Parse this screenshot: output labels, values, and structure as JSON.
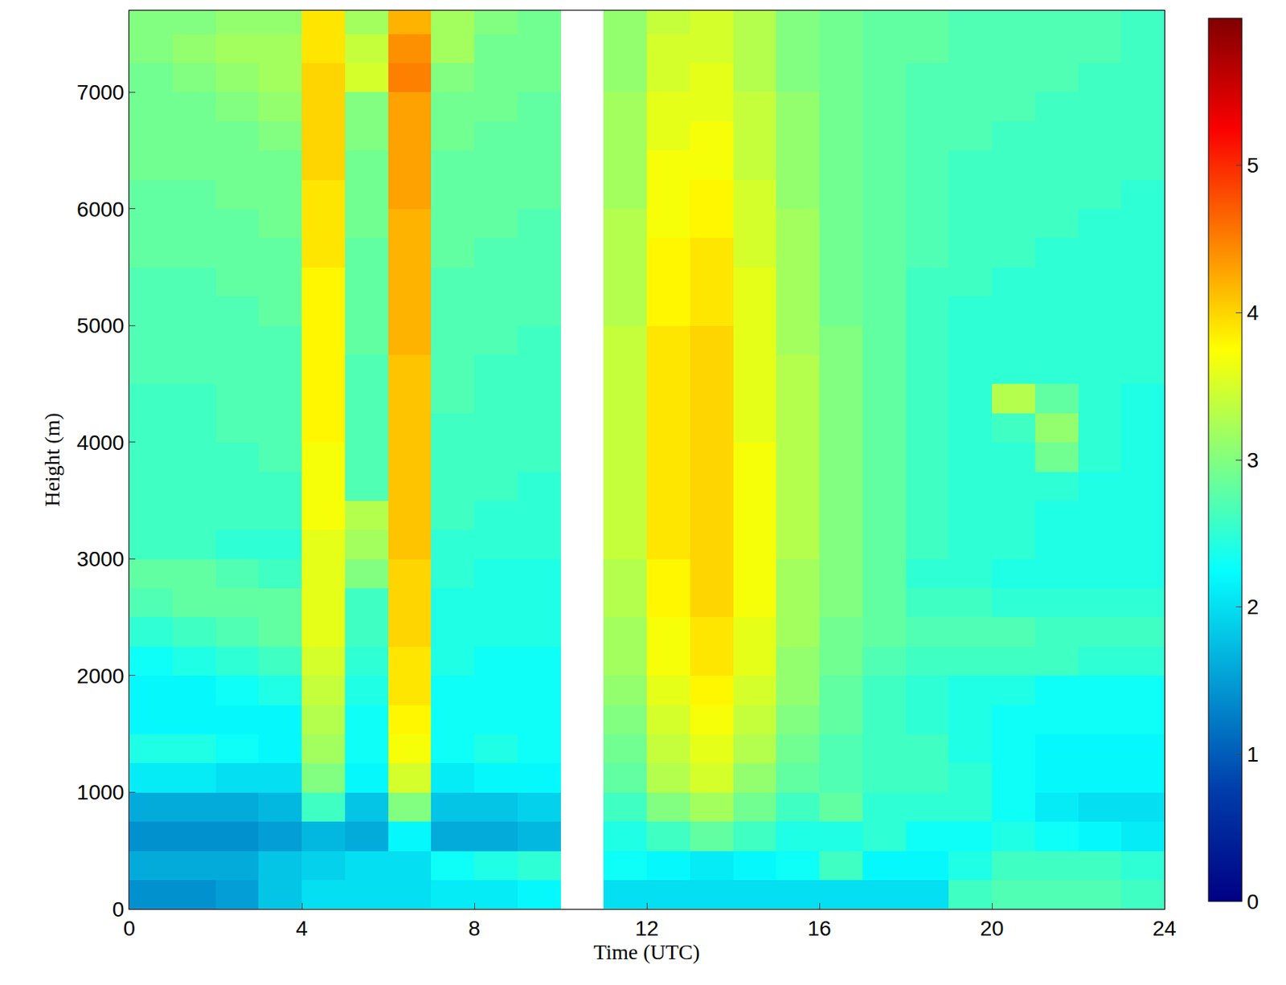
{
  "chart_data": {
    "type": "heatmap",
    "x_label": "Time (UTC)",
    "y_label": "Height (m)",
    "color": "Jet",
    "x": [
      0.5,
      1.5,
      2.5,
      3.5,
      4.5,
      5.5,
      6.5,
      7.5,
      8.5,
      9.5,
      10.5,
      11.5,
      12.5,
      13.5,
      14.5,
      15.5,
      16.5,
      17.5,
      18.5,
      19.5,
      20.5,
      21.5,
      22.5,
      23.5
    ],
    "y": [
      125,
      375,
      625,
      875,
      1125,
      1375,
      1625,
      1875,
      2125,
      2375,
      2625,
      2875,
      3125,
      3375,
      3625,
      3875,
      4125,
      4375,
      4625,
      4875,
      5125,
      5375,
      5625,
      5875,
      6125,
      6375,
      6625,
      6875,
      7125,
      7375,
      7625
    ],
    "z": [
      [
        1.4,
        1.4,
        1.5,
        1.8,
        2.0,
        2.0,
        2.0,
        2.1,
        2.1,
        2.2,
        null,
        2.0,
        2.0,
        2.0,
        2.0,
        2.0,
        2.0,
        2.0,
        2.0,
        2.6,
        2.7,
        2.7,
        2.7,
        2.6
      ],
      [
        1.6,
        1.6,
        1.6,
        1.8,
        1.9,
        2.0,
        2.0,
        2.3,
        2.4,
        2.5,
        null,
        2.3,
        2.2,
        2.1,
        2.2,
        2.3,
        2.6,
        2.2,
        2.2,
        2.4,
        2.6,
        2.6,
        2.6,
        2.5
      ],
      [
        1.4,
        1.4,
        1.4,
        1.5,
        1.7,
        1.6,
        2.2,
        1.6,
        1.6,
        1.7,
        null,
        2.4,
        2.6,
        2.8,
        2.6,
        2.4,
        2.4,
        2.5,
        2.3,
        2.3,
        2.4,
        2.3,
        2.2,
        2.1
      ],
      [
        1.6,
        1.6,
        1.6,
        1.7,
        2.6,
        1.8,
        3.0,
        1.8,
        1.8,
        1.9,
        null,
        2.6,
        3.0,
        3.2,
        2.9,
        2.6,
        2.8,
        2.5,
        2.5,
        2.5,
        2.3,
        2.1,
        2.0,
        2.0
      ],
      [
        2.1,
        2.1,
        2.0,
        2.0,
        3.0,
        2.2,
        3.5,
        2.1,
        2.2,
        2.2,
        null,
        2.8,
        3.3,
        3.5,
        3.1,
        2.8,
        2.7,
        2.6,
        2.6,
        2.5,
        2.3,
        2.2,
        2.2,
        2.2
      ],
      [
        2.4,
        2.4,
        2.3,
        2.2,
        3.2,
        2.3,
        3.7,
        2.3,
        2.4,
        2.3,
        null,
        2.9,
        3.4,
        3.6,
        3.3,
        2.9,
        2.7,
        2.6,
        2.6,
        2.4,
        2.3,
        2.2,
        2.2,
        2.2
      ],
      [
        2.2,
        2.2,
        2.2,
        2.2,
        3.3,
        2.3,
        3.8,
        2.3,
        2.3,
        2.3,
        null,
        3.0,
        3.5,
        3.7,
        3.4,
        3.0,
        2.8,
        2.6,
        2.5,
        2.4,
        2.3,
        2.3,
        2.3,
        2.3
      ],
      [
        2.2,
        2.2,
        2.3,
        2.4,
        3.4,
        2.4,
        3.9,
        2.3,
        2.3,
        2.3,
        null,
        3.1,
        3.6,
        3.8,
        3.5,
        3.1,
        2.8,
        2.6,
        2.5,
        2.4,
        2.4,
        2.3,
        2.3,
        2.3
      ],
      [
        2.3,
        2.4,
        2.5,
        2.6,
        3.5,
        2.5,
        3.9,
        2.4,
        2.3,
        2.3,
        null,
        3.2,
        3.7,
        3.9,
        3.6,
        3.1,
        2.9,
        2.7,
        2.6,
        2.6,
        2.6,
        2.6,
        2.5,
        2.5
      ],
      [
        2.5,
        2.6,
        2.7,
        2.8,
        3.6,
        2.6,
        4.0,
        2.4,
        2.4,
        2.4,
        null,
        3.2,
        3.7,
        3.9,
        3.6,
        3.2,
        2.9,
        2.8,
        2.7,
        2.7,
        2.7,
        2.6,
        2.6,
        2.6
      ],
      [
        2.7,
        2.8,
        2.8,
        2.8,
        3.6,
        2.6,
        4.0,
        2.4,
        2.4,
        2.4,
        null,
        3.3,
        3.8,
        4.0,
        3.7,
        3.2,
        3.0,
        2.8,
        2.6,
        2.6,
        2.5,
        2.5,
        2.5,
        2.5
      ],
      [
        2.8,
        2.8,
        2.7,
        2.6,
        3.6,
        3.0,
        4.0,
        2.5,
        2.4,
        2.4,
        null,
        3.3,
        3.8,
        4.0,
        3.7,
        3.2,
        3.0,
        2.8,
        2.5,
        2.5,
        2.4,
        2.4,
        2.4,
        2.4
      ],
      [
        2.6,
        2.6,
        2.5,
        2.5,
        3.6,
        3.2,
        4.1,
        2.5,
        2.5,
        2.5,
        null,
        3.4,
        3.9,
        4.0,
        3.7,
        3.3,
        3.0,
        2.8,
        2.6,
        2.5,
        2.5,
        2.4,
        2.4,
        2.4
      ],
      [
        2.6,
        2.6,
        2.6,
        2.6,
        3.7,
        3.3,
        4.1,
        2.6,
        2.5,
        2.5,
        null,
        3.4,
        3.9,
        4.0,
        3.7,
        3.3,
        3.0,
        2.8,
        2.6,
        2.5,
        2.5,
        2.4,
        2.4,
        2.4
      ],
      [
        2.6,
        2.6,
        2.6,
        2.6,
        3.7,
        2.7,
        4.1,
        2.6,
        2.6,
        2.5,
        null,
        3.4,
        3.9,
        4.0,
        3.7,
        3.3,
        3.0,
        2.8,
        2.6,
        2.5,
        2.5,
        2.5,
        2.4,
        2.4
      ],
      [
        2.6,
        2.6,
        2.6,
        2.7,
        3.7,
        2.7,
        4.1,
        2.6,
        2.6,
        2.6,
        null,
        3.4,
        3.9,
        4.0,
        3.7,
        3.3,
        3.0,
        2.8,
        2.6,
        2.5,
        2.5,
        2.9,
        2.5,
        2.4
      ],
      [
        2.6,
        2.6,
        2.7,
        2.7,
        3.8,
        2.7,
        4.1,
        2.6,
        2.6,
        2.6,
        null,
        3.4,
        3.9,
        4.0,
        3.6,
        3.3,
        3.0,
        2.8,
        2.6,
        2.5,
        2.6,
        3.1,
        2.5,
        2.4
      ],
      [
        2.6,
        2.6,
        2.7,
        2.7,
        3.8,
        2.7,
        4.1,
        2.7,
        2.6,
        2.6,
        null,
        3.4,
        3.9,
        4.0,
        3.6,
        3.3,
        3.0,
        2.8,
        2.6,
        2.5,
        3.3,
        2.8,
        2.5,
        2.4
      ],
      [
        2.7,
        2.7,
        2.7,
        2.7,
        3.8,
        2.7,
        4.1,
        2.7,
        2.6,
        2.6,
        null,
        3.4,
        3.9,
        4.0,
        3.6,
        3.3,
        3.0,
        2.8,
        2.6,
        2.5,
        2.5,
        2.5,
        2.5,
        2.5
      ],
      [
        2.7,
        2.7,
        2.7,
        2.7,
        3.8,
        2.8,
        4.2,
        2.7,
        2.7,
        2.6,
        null,
        3.4,
        3.9,
        4.0,
        3.6,
        3.2,
        3.0,
        2.8,
        2.6,
        2.5,
        2.5,
        2.5,
        2.5,
        2.5
      ],
      [
        2.7,
        2.7,
        2.7,
        2.8,
        3.8,
        2.8,
        4.2,
        2.7,
        2.7,
        2.7,
        null,
        3.3,
        3.8,
        3.9,
        3.6,
        3.2,
        2.9,
        2.8,
        2.6,
        2.5,
        2.5,
        2.5,
        2.5,
        2.5
      ],
      [
        2.7,
        2.7,
        2.8,
        2.8,
        3.8,
        2.8,
        4.2,
        2.7,
        2.7,
        2.7,
        null,
        3.3,
        3.8,
        3.9,
        3.6,
        3.2,
        2.9,
        2.8,
        2.6,
        2.6,
        2.5,
        2.5,
        2.5,
        2.5
      ],
      [
        2.8,
        2.8,
        2.8,
        2.8,
        3.9,
        2.8,
        4.2,
        2.8,
        2.7,
        2.7,
        null,
        3.3,
        3.8,
        3.9,
        3.5,
        3.2,
        2.9,
        2.8,
        2.7,
        2.6,
        2.6,
        2.5,
        2.5,
        2.5
      ],
      [
        2.8,
        2.8,
        2.8,
        2.9,
        3.9,
        2.9,
        4.2,
        2.8,
        2.8,
        2.7,
        null,
        3.3,
        3.7,
        3.8,
        3.5,
        3.2,
        2.9,
        2.8,
        2.7,
        2.6,
        2.6,
        2.6,
        2.5,
        2.5
      ],
      [
        2.8,
        2.8,
        2.9,
        2.9,
        3.9,
        2.9,
        4.3,
        2.8,
        2.8,
        2.8,
        null,
        3.2,
        3.7,
        3.8,
        3.5,
        3.1,
        2.9,
        2.8,
        2.7,
        2.6,
        2.6,
        2.6,
        2.6,
        2.5
      ],
      [
        2.9,
        2.9,
        2.9,
        2.9,
        4.0,
        2.9,
        4.3,
        2.8,
        2.8,
        2.8,
        null,
        3.2,
        3.7,
        3.7,
        3.4,
        3.1,
        2.9,
        2.8,
        2.7,
        2.6,
        2.6,
        2.6,
        2.6,
        2.6
      ],
      [
        2.9,
        2.9,
        2.9,
        3.0,
        4.0,
        3.0,
        4.3,
        2.9,
        2.8,
        2.8,
        null,
        3.2,
        3.6,
        3.7,
        3.4,
        3.1,
        2.9,
        2.8,
        2.7,
        2.7,
        2.6,
        2.6,
        2.6,
        2.6
      ],
      [
        2.9,
        2.9,
        3.0,
        3.1,
        4.0,
        3.0,
        4.3,
        2.9,
        2.9,
        2.8,
        null,
        3.2,
        3.6,
        3.6,
        3.4,
        3.1,
        2.9,
        2.8,
        2.7,
        2.7,
        2.7,
        2.6,
        2.6,
        2.6
      ],
      [
        2.9,
        3.0,
        3.1,
        3.2,
        4.0,
        3.5,
        4.5,
        3.0,
        2.9,
        2.9,
        null,
        3.1,
        3.5,
        3.6,
        3.3,
        3.0,
        2.9,
        2.8,
        2.7,
        2.7,
        2.7,
        2.7,
        2.6,
        2.6
      ],
      [
        3.0,
        3.1,
        3.2,
        3.2,
        3.9,
        3.4,
        4.4,
        3.2,
        2.9,
        2.9,
        null,
        3.1,
        3.5,
        3.5,
        3.3,
        3.0,
        2.9,
        2.8,
        2.8,
        2.7,
        2.7,
        2.7,
        2.7,
        2.6
      ],
      [
        3.0,
        3.0,
        3.1,
        3.1,
        3.9,
        3.2,
        4.2,
        3.2,
        3.0,
        2.9,
        null,
        3.1,
        3.4,
        3.5,
        3.3,
        3.0,
        2.9,
        2.8,
        2.8,
        2.7,
        2.7,
        2.7,
        2.7,
        2.6
      ]
    ],
    "xlim": [
      0,
      24
    ],
    "xticks": [
      0,
      4,
      8,
      12,
      16,
      20,
      24
    ],
    "ylim": [
      0,
      7700
    ],
    "yticks": [
      0,
      1000,
      2000,
      3000,
      4000,
      5000,
      6000,
      7000
    ],
    "colorbar_range": [
      0,
      6
    ],
    "colorbar_ticks": [
      0,
      1,
      2,
      3,
      4,
      5
    ],
    "grid": false
  }
}
